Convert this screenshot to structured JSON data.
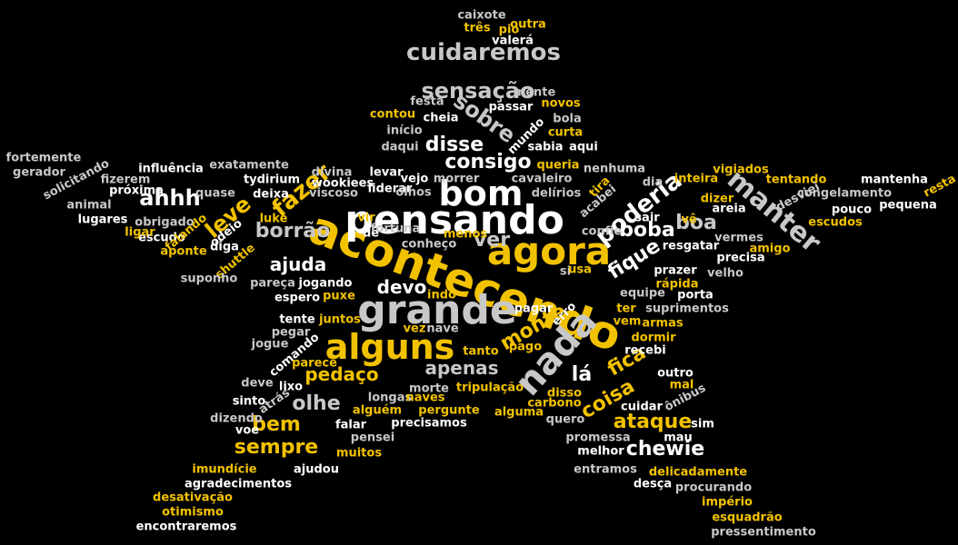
{
  "palette": {
    "background": "#000000",
    "white": "#ffffff",
    "grey": "#c8c8c8",
    "yellow": "#f2c200"
  },
  "words": [
    {
      "text": "acontecendo",
      "c": "yellow"
    },
    {
      "text": "pensando",
      "c": "white"
    },
    {
      "text": "grande",
      "c": "grey"
    },
    {
      "text": "agora",
      "c": "yellow"
    },
    {
      "text": "nada",
      "c": "grey"
    },
    {
      "text": "alguns",
      "c": "yellow"
    },
    {
      "text": "bom",
      "c": "white"
    },
    {
      "text": "manter",
      "c": "grey"
    },
    {
      "text": "cuidaremos",
      "c": "grey"
    },
    {
      "text": "sensação",
      "c": "grey"
    },
    {
      "text": "sobre",
      "c": "grey"
    },
    {
      "text": "poderia",
      "c": "white"
    },
    {
      "text": "fazer",
      "c": "yellow"
    },
    {
      "text": "ahhh",
      "c": "white"
    },
    {
      "text": "leve",
      "c": "yellow"
    },
    {
      "text": "borrão",
      "c": "grey"
    },
    {
      "text": "disse",
      "c": "white"
    },
    {
      "text": "consigo",
      "c": "white"
    },
    {
      "text": "ver",
      "c": "grey"
    },
    {
      "text": "boa",
      "c": "grey"
    },
    {
      "text": "boba",
      "c": "white"
    },
    {
      "text": "fique",
      "c": "white"
    },
    {
      "text": "ajuda",
      "c": "white"
    },
    {
      "text": "devo",
      "c": "white"
    },
    {
      "text": "monte",
      "c": "yellow"
    },
    {
      "text": "apenas",
      "c": "grey"
    },
    {
      "text": "olhe",
      "c": "grey"
    },
    {
      "text": "pedaço",
      "c": "yellow"
    },
    {
      "text": "bem",
      "c": "yellow"
    },
    {
      "text": "sempre",
      "c": "yellow"
    },
    {
      "text": "fica",
      "c": "yellow"
    },
    {
      "text": "lá",
      "c": "white"
    },
    {
      "text": "coisa",
      "c": "yellow"
    },
    {
      "text": "ataque",
      "c": "yellow"
    },
    {
      "text": "chewie",
      "c": "white"
    },
    {
      "text": "caixote",
      "c": "grey"
    },
    {
      "text": "outra",
      "c": "yellow"
    },
    {
      "text": "três",
      "c": "yellow"
    },
    {
      "text": "pio",
      "c": "yellow"
    },
    {
      "text": "valerá",
      "c": "white"
    },
    {
      "text": "festa",
      "c": "grey"
    },
    {
      "text": "passar",
      "c": "white"
    },
    {
      "text": "mente",
      "c": "grey"
    },
    {
      "text": "novos",
      "c": "yellow"
    },
    {
      "text": "contou",
      "c": "yellow"
    },
    {
      "text": "cheia",
      "c": "white"
    },
    {
      "text": "início",
      "c": "grey"
    },
    {
      "text": "mundo",
      "c": "white"
    },
    {
      "text": "bola",
      "c": "grey"
    },
    {
      "text": "curta",
      "c": "yellow"
    },
    {
      "text": "daqui",
      "c": "grey"
    },
    {
      "text": "sabia",
      "c": "white"
    },
    {
      "text": "aqui",
      "c": "white"
    },
    {
      "text": "queria",
      "c": "yellow"
    },
    {
      "text": "fortemente",
      "c": "grey"
    },
    {
      "text": "gerador",
      "c": "grey"
    },
    {
      "text": "solicitando",
      "c": "grey"
    },
    {
      "text": "animal",
      "c": "grey"
    },
    {
      "text": "lugares",
      "c": "white"
    },
    {
      "text": "influência",
      "c": "white"
    },
    {
      "text": "exatamente",
      "c": "grey"
    },
    {
      "text": "fizerem",
      "c": "grey"
    },
    {
      "text": "próxima",
      "c": "white"
    },
    {
      "text": "quase",
      "c": "grey"
    },
    {
      "text": "tydirium",
      "c": "white"
    },
    {
      "text": "deixa",
      "c": "white"
    },
    {
      "text": "obrigado",
      "c": "grey"
    },
    {
      "text": "escudo",
      "c": "white"
    },
    {
      "text": "divina",
      "c": "grey"
    },
    {
      "text": "wookiees",
      "c": "white"
    },
    {
      "text": "viscoso",
      "c": "grey"
    },
    {
      "text": "levar",
      "c": "white"
    },
    {
      "text": "vejo",
      "c": "white"
    },
    {
      "text": "liderar",
      "c": "white"
    },
    {
      "text": "olhos",
      "c": "grey"
    },
    {
      "text": "morrer",
      "c": "grey"
    },
    {
      "text": "cavaleiro",
      "c": "grey"
    },
    {
      "text": "delírios",
      "c": "grey"
    },
    {
      "text": "nenhuma",
      "c": "grey"
    },
    {
      "text": "tira",
      "c": "yellow"
    },
    {
      "text": "acabei",
      "c": "grey"
    },
    {
      "text": "dia",
      "c": "grey"
    },
    {
      "text": "inteira",
      "c": "yellow"
    },
    {
      "text": "vigiados",
      "c": "yellow"
    },
    {
      "text": "tentando",
      "c": "yellow"
    },
    {
      "text": "mantenha",
      "c": "white"
    },
    {
      "text": "resta",
      "c": "yellow"
    },
    {
      "text": "desviei",
      "c": "grey"
    },
    {
      "text": "congelamento",
      "c": "grey"
    },
    {
      "text": "pequena",
      "c": "white"
    },
    {
      "text": "pouco",
      "c": "white"
    },
    {
      "text": "areia",
      "c": "white"
    },
    {
      "text": "dizer",
      "c": "yellow"
    },
    {
      "text": "escudos",
      "c": "yellow"
    },
    {
      "text": "vê",
      "c": "yellow"
    },
    {
      "text": "sair",
      "c": "white"
    },
    {
      "text": "confie",
      "c": "grey"
    },
    {
      "text": "vermes",
      "c": "grey"
    },
    {
      "text": "amigo",
      "c": "yellow"
    },
    {
      "text": "precisa",
      "c": "white"
    },
    {
      "text": "resgatar",
      "c": "white"
    },
    {
      "text": "prazer",
      "c": "white"
    },
    {
      "text": "velho",
      "c": "grey"
    },
    {
      "text": "luke",
      "c": "yellow"
    },
    {
      "text": "vir",
      "c": "yellow"
    },
    {
      "text": "dê",
      "c": "white"
    },
    {
      "text": "fortuna",
      "c": "grey"
    },
    {
      "text": "conheço",
      "c": "grey"
    },
    {
      "text": "menos",
      "c": "yellow"
    },
    {
      "text": "ligar",
      "c": "yellow"
    },
    {
      "text": "falando",
      "c": "yellow"
    },
    {
      "text": "odeio",
      "c": "white"
    },
    {
      "text": "diga",
      "c": "white"
    },
    {
      "text": "aponte",
      "c": "yellow"
    },
    {
      "text": "shuttle",
      "c": "yellow"
    },
    {
      "text": "suponho",
      "c": "grey"
    },
    {
      "text": "pareça",
      "c": "grey"
    },
    {
      "text": "jogando",
      "c": "white"
    },
    {
      "text": "espero",
      "c": "white"
    },
    {
      "text": "puxe",
      "c": "yellow"
    },
    {
      "text": "indo",
      "c": "yellow"
    },
    {
      "text": "si",
      "c": "grey"
    },
    {
      "text": "usa",
      "c": "yellow"
    },
    {
      "text": "rápida",
      "c": "yellow"
    },
    {
      "text": "porta",
      "c": "white"
    },
    {
      "text": "equipe",
      "c": "grey"
    },
    {
      "text": "suprimentos",
      "c": "grey"
    },
    {
      "text": "ter",
      "c": "yellow"
    },
    {
      "text": "vem",
      "c": "yellow"
    },
    {
      "text": "armas",
      "c": "yellow"
    },
    {
      "text": "dormir",
      "c": "yellow"
    },
    {
      "text": "recebi",
      "c": "white"
    },
    {
      "text": "pagar",
      "c": "white"
    },
    {
      "text": "erro",
      "c": "white"
    },
    {
      "text": "tente",
      "c": "white"
    },
    {
      "text": "juntos",
      "c": "yellow"
    },
    {
      "text": "pegar",
      "c": "grey"
    },
    {
      "text": "vez",
      "c": "yellow"
    },
    {
      "text": "nave",
      "c": "grey"
    },
    {
      "text": "jogue",
      "c": "grey"
    },
    {
      "text": "comando",
      "c": "white"
    },
    {
      "text": "tanto",
      "c": "yellow"
    },
    {
      "text": "pago",
      "c": "yellow"
    },
    {
      "text": "parece",
      "c": "yellow"
    },
    {
      "text": "deve",
      "c": "grey"
    },
    {
      "text": "lixo",
      "c": "white"
    },
    {
      "text": "morte",
      "c": "grey"
    },
    {
      "text": "tripulação",
      "c": "yellow"
    },
    {
      "text": "outro",
      "c": "white"
    },
    {
      "text": "mal",
      "c": "yellow"
    },
    {
      "text": "sinto",
      "c": "white"
    },
    {
      "text": "atrás",
      "c": "grey"
    },
    {
      "text": "longas",
      "c": "grey"
    },
    {
      "text": "naves",
      "c": "yellow"
    },
    {
      "text": "disso",
      "c": "yellow"
    },
    {
      "text": "carbono",
      "c": "yellow"
    },
    {
      "text": "ônibus",
      "c": "grey"
    },
    {
      "text": "dizendo",
      "c": "grey"
    },
    {
      "text": "alguém",
      "c": "yellow"
    },
    {
      "text": "pergunte",
      "c": "yellow"
    },
    {
      "text": "alguma",
      "c": "yellow"
    },
    {
      "text": "quero",
      "c": "grey"
    },
    {
      "text": "cuidar",
      "c": "white"
    },
    {
      "text": "voe",
      "c": "white"
    },
    {
      "text": "falar",
      "c": "white"
    },
    {
      "text": "pensei",
      "c": "grey"
    },
    {
      "text": "precisamos",
      "c": "white"
    },
    {
      "text": "sim",
      "c": "white"
    },
    {
      "text": "mau",
      "c": "white"
    },
    {
      "text": "promessa",
      "c": "grey"
    },
    {
      "text": "muitos",
      "c": "yellow"
    },
    {
      "text": "melhor",
      "c": "white"
    },
    {
      "text": "imundície",
      "c": "yellow"
    },
    {
      "text": "ajudou",
      "c": "white"
    },
    {
      "text": "entramos",
      "c": "grey"
    },
    {
      "text": "delicadamente",
      "c": "yellow"
    },
    {
      "text": "agradecimentos",
      "c": "white"
    },
    {
      "text": "desça",
      "c": "white"
    },
    {
      "text": "procurando",
      "c": "grey"
    },
    {
      "text": "desativação",
      "c": "yellow"
    },
    {
      "text": "império",
      "c": "yellow"
    },
    {
      "text": "otimismo",
      "c": "yellow"
    },
    {
      "text": "esquadrão",
      "c": "yellow"
    },
    {
      "text": "encontraremos",
      "c": "white"
    },
    {
      "text": "pressentimento",
      "c": "grey"
    }
  ]
}
